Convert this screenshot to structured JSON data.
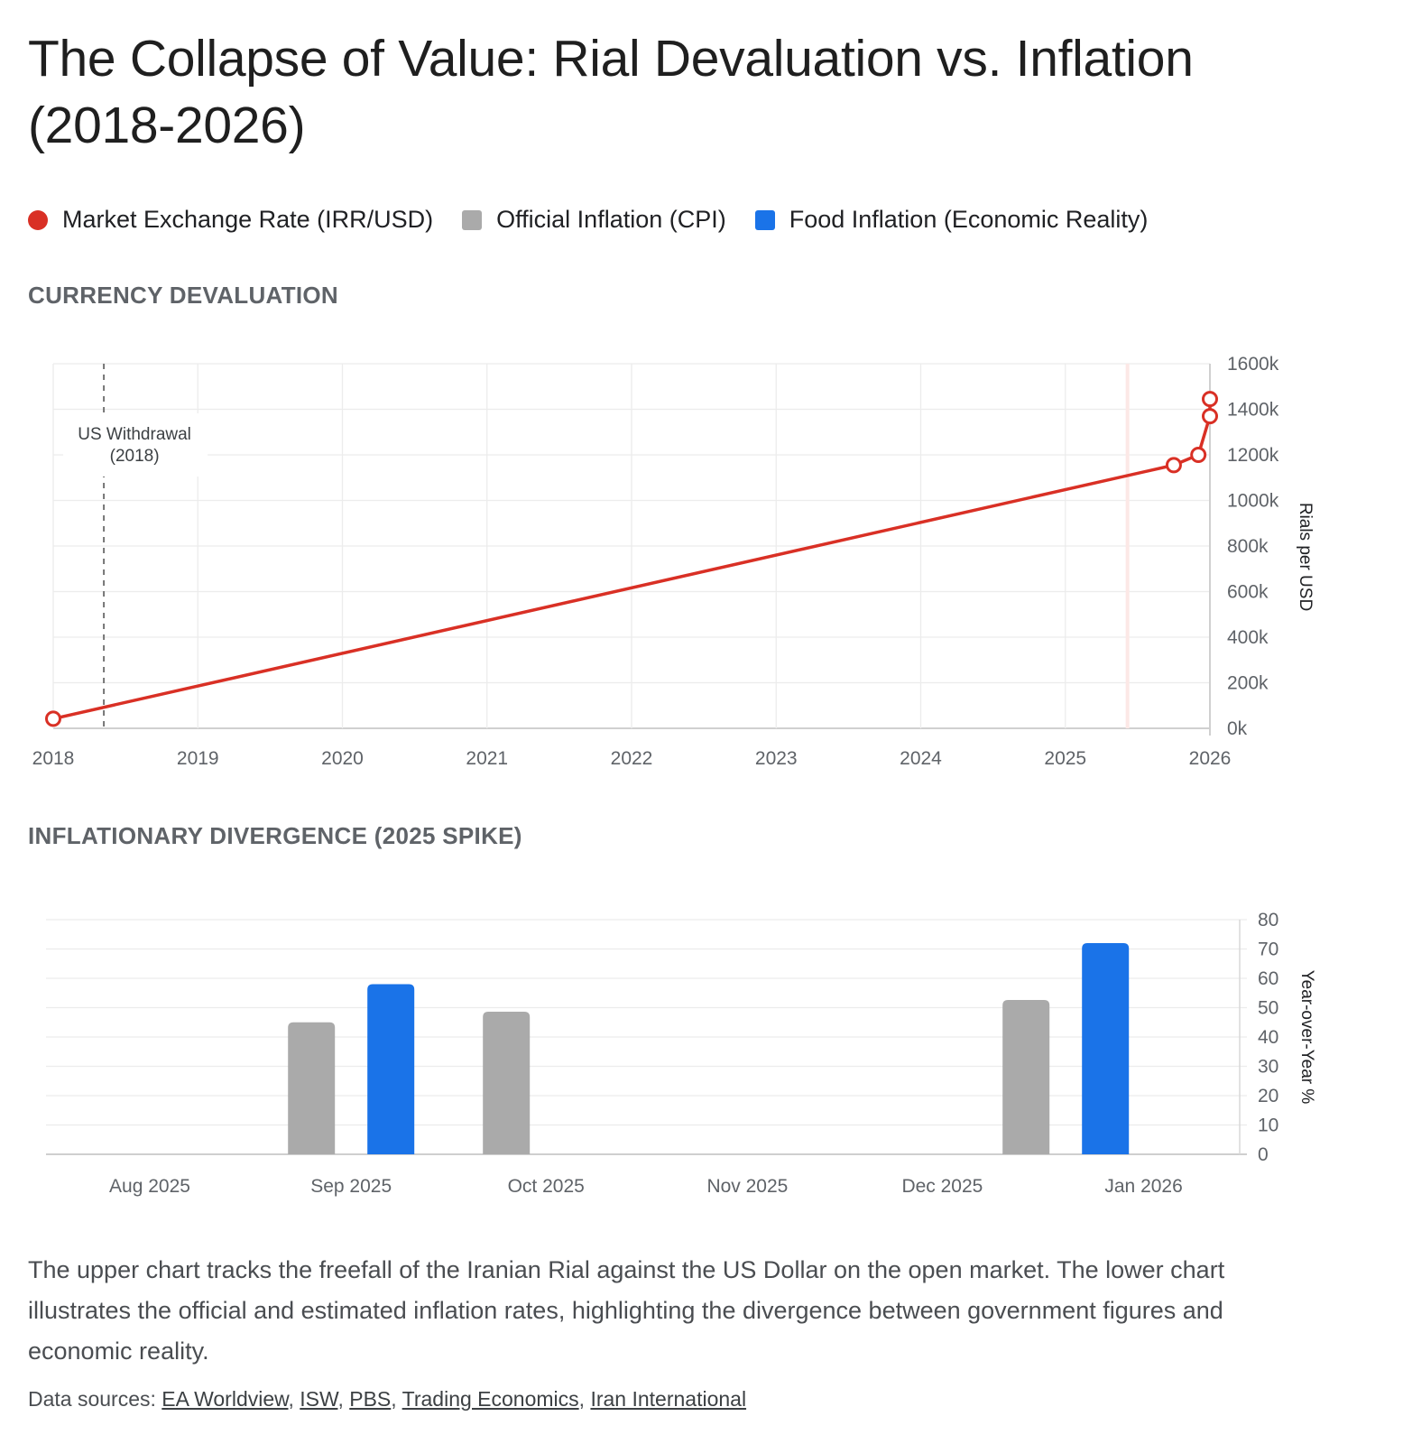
{
  "title": "The Collapse of Value: Rial Devaluation vs. Inflation (2018-2026)",
  "legend": [
    {
      "label": "Market Exchange Rate (IRR/USD)",
      "color": "#d93025",
      "shape": "circle"
    },
    {
      "label": "Official Inflation (CPI)",
      "color": "#aaaaaa",
      "shape": "square"
    },
    {
      "label": "Food Inflation (Economic Reality)",
      "color": "#1a73e8",
      "shape": "square"
    }
  ],
  "sections": {
    "currency_heading": "CURRENCY DEVALUATION",
    "inflation_heading": "INFLATIONARY DIVERGENCE (2025 SPIKE)"
  },
  "chart_data": [
    {
      "type": "line",
      "title": "CURRENCY DEVALUATION",
      "xlabel": "",
      "ylabel": "Rials per USD",
      "xlim": [
        2018,
        2026
      ],
      "ylim": [
        0,
        1600000
      ],
      "x_ticks": [
        "2018",
        "2019",
        "2020",
        "2021",
        "2022",
        "2023",
        "2024",
        "2025",
        "2026"
      ],
      "y_ticks": [
        "0k",
        "200k",
        "400k",
        "600k",
        "800k",
        "1000k",
        "1200k",
        "1400k",
        "1600k"
      ],
      "y_tick_values": [
        0,
        200000,
        400000,
        600000,
        800000,
        1000000,
        1200000,
        1400000,
        1600000
      ],
      "grid": true,
      "y_axis_side": "right",
      "series": [
        {
          "name": "Market Exchange Rate (IRR/USD)",
          "color": "#d93025",
          "points": [
            {
              "x": 2018.0,
              "label": "2018",
              "y": 42000
            },
            {
              "x": 2025.75,
              "label": "Oct 2025",
              "y": 1155000
            },
            {
              "x": 2025.92,
              "label": "Dec 2025",
              "y": 1200000
            },
            {
              "x": 2026.0,
              "label": "Jan 2026",
              "y": 1370000
            },
            {
              "x": 2026.0,
              "label": "Jan 2026",
              "y": 1445000
            }
          ]
        }
      ],
      "annotations": [
        {
          "type": "vline",
          "x": 2018.35,
          "style": "dashed",
          "color": "#757575",
          "label_lines": [
            "US Withdrawal",
            "(2018)"
          ]
        },
        {
          "type": "vline",
          "x": 2025.43,
          "style": "solid",
          "color": "#fce8e6",
          "label_lines": []
        }
      ]
    },
    {
      "type": "bar",
      "title": "INFLATIONARY DIVERGENCE (2025 SPIKE)",
      "xlabel": "",
      "ylabel": "Year-over-Year %",
      "ylim": [
        0,
        80
      ],
      "y_ticks": [
        "0",
        "10",
        "20",
        "30",
        "40",
        "50",
        "60",
        "70",
        "80"
      ],
      "y_tick_values": [
        0,
        10,
        20,
        30,
        40,
        50,
        60,
        70,
        80
      ],
      "x_ticks": [
        "Aug 2025",
        "Sep 2025",
        "Oct 2025",
        "Nov 2025",
        "Dec 2025",
        "Jan 2026"
      ],
      "x_tick_days": [
        0,
        31,
        61,
        92,
        122,
        153
      ],
      "grid": true,
      "y_axis_side": "right",
      "categories": [
        "Sep 2025",
        "Oct 2025",
        "Late Dec 2025"
      ],
      "category_days": [
        31,
        61,
        141
      ],
      "series": [
        {
          "name": "Official Inflation (CPI)",
          "color": "#aaaaaa",
          "values": [
            45,
            48.6,
            52.6
          ]
        },
        {
          "name": "Food Inflation (Economic Reality)",
          "color": "#1a73e8",
          "values": [
            58,
            null,
            72
          ]
        }
      ]
    }
  ],
  "description": "The upper chart tracks the freefall of the Iranian Rial against the US Dollar on the open market. The lower chart illustrates the official and estimated inflation rates, highlighting the divergence between government figures and economic reality.",
  "sources": {
    "prefix": "Data sources: ",
    "links": [
      "EA Worldview",
      "ISW",
      "PBS",
      "Trading Economics",
      "Iran International"
    ]
  }
}
